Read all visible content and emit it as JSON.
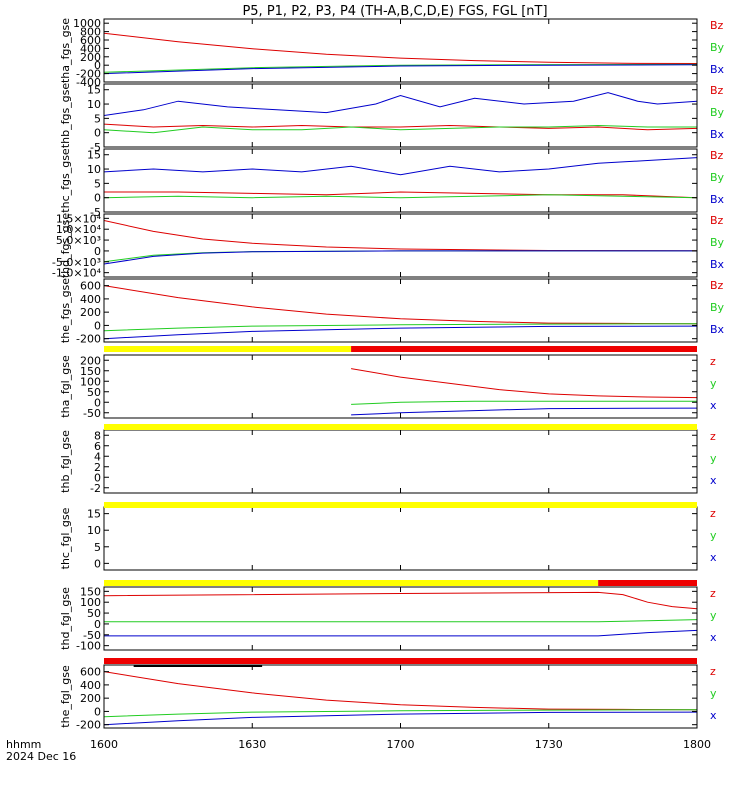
{
  "title": "P5, P1, P2, P3, P4 (TH-A,B,C,D,E) FGS, FGL [nT]",
  "footer": {
    "line1": "hhmm",
    "line2": "2024 Dec 16"
  },
  "colors": {
    "x": "#0000cc",
    "y": "#22cc22",
    "z": "#dd0000",
    "yellow": "#ffff00",
    "red": "#ee0000",
    "black": "#000000"
  },
  "chart_data": {
    "type": "line",
    "x_range": [
      "16:00",
      "18:00"
    ],
    "x_ticks": [
      {
        "t": "16:00",
        "label": "1600"
      },
      {
        "t": "16:30",
        "label": "1630"
      },
      {
        "t": "17:00",
        "label": "1700"
      },
      {
        "t": "17:30",
        "label": "1730"
      },
      {
        "t": "18:00",
        "label": "1800"
      }
    ],
    "panels": [
      {
        "ylabel": "tha_fgs_gse",
        "yticks": [
          {
            "v": 1000,
            "label": "1000"
          },
          {
            "v": 800,
            "label": "800"
          },
          {
            "v": 600,
            "label": "600"
          },
          {
            "v": 400,
            "label": "400"
          },
          {
            "v": 200,
            "label": "200"
          },
          {
            "v": 0,
            "label": "0"
          },
          {
            "v": -200,
            "label": "-200"
          },
          {
            "v": -400,
            "label": "-400"
          }
        ],
        "ylim": [
          -400,
          1100
        ],
        "legend": [
          "Bz",
          "By",
          "Bx"
        ],
        "series": [
          {
            "comp": "z",
            "t": [
              "16:00",
              "16:15",
              "16:30",
              "16:45",
              "17:00",
              "17:15",
              "17:30",
              "17:45",
              "18:00"
            ],
            "v": [
              760,
              560,
              390,
              260,
              170,
              110,
              70,
              45,
              40
            ]
          },
          {
            "comp": "y",
            "t": [
              "16:00",
              "16:30",
              "17:00",
              "17:30",
              "18:00"
            ],
            "v": [
              -170,
              -60,
              0,
              15,
              20
            ]
          },
          {
            "comp": "x",
            "t": [
              "16:00",
              "16:30",
              "17:00",
              "17:30",
              "18:00"
            ],
            "v": [
              -200,
              -80,
              -20,
              0,
              10
            ]
          }
        ]
      },
      {
        "ylabel": "thb_fgs_gse",
        "yticks": [
          {
            "v": 15,
            "label": "15"
          },
          {
            "v": 10,
            "label": "10"
          },
          {
            "v": 5,
            "label": "5"
          },
          {
            "v": 0,
            "label": "0"
          },
          {
            "v": -5,
            "label": "-5"
          }
        ],
        "ylim": [
          -5,
          17
        ],
        "legend": [
          "Bz",
          "By",
          "Bx"
        ],
        "series": [
          {
            "comp": "x",
            "t": [
              "16:00",
              "16:08",
              "16:15",
              "16:25",
              "16:35",
              "16:45",
              "16:55",
              "17:00",
              "17:08",
              "17:15",
              "17:25",
              "17:35",
              "17:42",
              "17:48",
              "17:52",
              "18:00"
            ],
            "v": [
              6,
              8,
              11,
              9,
              8,
              7,
              10,
              13,
              9,
              12,
              10,
              11,
              14,
              11,
              10,
              11
            ]
          },
          {
            "comp": "z",
            "t": [
              "16:00",
              "16:10",
              "16:20",
              "16:30",
              "16:40",
              "16:50",
              "17:00",
              "17:10",
              "17:20",
              "17:30",
              "17:40",
              "17:50",
              "18:00"
            ],
            "v": [
              3,
              2,
              2.5,
              2,
              2.5,
              2,
              2,
              2.5,
              2,
              1.5,
              2,
              1,
              1.5
            ]
          },
          {
            "comp": "y",
            "t": [
              "16:00",
              "16:10",
              "16:20",
              "16:30",
              "16:40",
              "16:50",
              "17:00",
              "17:10",
              "17:20",
              "17:30",
              "17:40",
              "17:50",
              "18:00"
            ],
            "v": [
              1,
              0,
              2,
              1,
              1,
              2,
              1,
              1.5,
              2,
              2,
              2.5,
              2,
              2
            ]
          }
        ]
      },
      {
        "ylabel": "thc_fgs_gse",
        "yticks": [
          {
            "v": 15,
            "label": "15"
          },
          {
            "v": 10,
            "label": "10"
          },
          {
            "v": 5,
            "label": "5"
          },
          {
            "v": 0,
            "label": "0"
          },
          {
            "v": -5,
            "label": "-5"
          }
        ],
        "ylim": [
          -5,
          17
        ],
        "legend": [
          "Bz",
          "By",
          "Bx"
        ],
        "series": [
          {
            "comp": "x",
            "t": [
              "16:00",
              "16:10",
              "16:20",
              "16:30",
              "16:40",
              "16:50",
              "17:00",
              "17:10",
              "17:20",
              "17:30",
              "17:40",
              "17:50",
              "18:00"
            ],
            "v": [
              9,
              10,
              9,
              10,
              9,
              11,
              8,
              11,
              9,
              10,
              12,
              13,
              14
            ]
          },
          {
            "comp": "z",
            "t": [
              "16:00",
              "16:15",
              "16:30",
              "16:45",
              "17:00",
              "17:15",
              "17:30",
              "17:45",
              "18:00"
            ],
            "v": [
              2,
              2,
              1.5,
              1,
              2,
              1.5,
              1,
              1,
              0
            ]
          },
          {
            "comp": "y",
            "t": [
              "16:00",
              "16:15",
              "16:30",
              "16:45",
              "17:00",
              "17:15",
              "17:30",
              "17:45",
              "18:00"
            ],
            "v": [
              0,
              0.5,
              0,
              0.5,
              0,
              0.5,
              1,
              0.5,
              0
            ]
          }
        ]
      },
      {
        "ylabel": "thd_fgs_gse",
        "yticks": [
          {
            "v": 15000,
            "label": "1.5×10⁴"
          },
          {
            "v": 10000,
            "label": "1.0×10⁴"
          },
          {
            "v": 5000,
            "label": "5.0×10³"
          },
          {
            "v": 0,
            "label": "0"
          },
          {
            "v": -5000,
            "label": "-5.0×10³"
          },
          {
            "v": -10000,
            "label": "-1.0×10⁴"
          }
        ],
        "ylim": [
          -12000,
          17000
        ],
        "legend": [
          "Bz",
          "By",
          "Bx"
        ],
        "series": [
          {
            "comp": "z",
            "t": [
              "16:00",
              "16:10",
              "16:20",
              "16:30",
              "16:45",
              "17:00",
              "17:15",
              "17:30",
              "18:00"
            ],
            "v": [
              14000,
              9000,
              5500,
              3500,
              1800,
              900,
              500,
              200,
              100
            ]
          },
          {
            "comp": "y",
            "t": [
              "16:00",
              "16:10",
              "16:20",
              "16:30",
              "17:00",
              "18:00"
            ],
            "v": [
              -5000,
              -2000,
              -800,
              -300,
              0,
              0
            ]
          },
          {
            "comp": "x",
            "t": [
              "16:00",
              "16:10",
              "16:20",
              "16:30",
              "17:00",
              "18:00"
            ],
            "v": [
              -6000,
              -2500,
              -1000,
              -400,
              0,
              0
            ]
          }
        ]
      },
      {
        "ylabel": "the_fgs_gse",
        "yticks": [
          {
            "v": 600,
            "label": "600"
          },
          {
            "v": 400,
            "label": "400"
          },
          {
            "v": 200,
            "label": "200"
          },
          {
            "v": 0,
            "label": "0"
          },
          {
            "v": -200,
            "label": "-200"
          }
        ],
        "ylim": [
          -250,
          700
        ],
        "legend": [
          "Bz",
          "By",
          "Bx"
        ],
        "series": [
          {
            "comp": "z",
            "t": [
              "16:00",
              "16:15",
              "16:30",
              "16:45",
              "17:00",
              "17:15",
              "17:30",
              "17:45",
              "18:00"
            ],
            "v": [
              600,
              420,
              280,
              170,
              100,
              60,
              35,
              30,
              25
            ]
          },
          {
            "comp": "y",
            "t": [
              "16:00",
              "16:15",
              "16:30",
              "17:00",
              "17:30",
              "18:00"
            ],
            "v": [
              -80,
              -40,
              -10,
              10,
              20,
              25
            ]
          },
          {
            "comp": "x",
            "t": [
              "16:00",
              "16:15",
              "16:30",
              "17:00",
              "17:30",
              "18:00"
            ],
            "v": [
              -200,
              -140,
              -90,
              -40,
              -15,
              -10
            ]
          }
        ]
      },
      {
        "ylabel": "tha_fgl_gse",
        "yticks": [
          {
            "v": 200,
            "label": "200"
          },
          {
            "v": 150,
            "label": "150"
          },
          {
            "v": 100,
            "label": "100"
          },
          {
            "v": 50,
            "label": "50"
          },
          {
            "v": 0,
            "label": "0"
          },
          {
            "v": -50,
            "label": "-50"
          }
        ],
        "ylim": [
          -75,
          225
        ],
        "legend": [
          "z",
          "y",
          "x"
        ],
        "series": [
          {
            "comp": "z",
            "t": [
              "16:50",
              "17:00",
              "17:10",
              "17:20",
              "17:30",
              "17:40",
              "17:50",
              "18:00"
            ],
            "v": [
              160,
              120,
              90,
              60,
              40,
              30,
              25,
              22
            ]
          },
          {
            "comp": "y",
            "t": [
              "16:50",
              "17:00",
              "17:15",
              "17:30",
              "18:00"
            ],
            "v": [
              -10,
              0,
              5,
              5,
              5
            ]
          },
          {
            "comp": "x",
            "t": [
              "16:50",
              "17:00",
              "17:15",
              "17:30",
              "18:00"
            ],
            "v": [
              -60,
              -50,
              -40,
              -30,
              -28
            ]
          }
        ]
      },
      {
        "ylabel": "thb_fgl_gse",
        "yticks": [
          {
            "v": 8,
            "label": "8"
          },
          {
            "v": 6,
            "label": "6"
          },
          {
            "v": 4,
            "label": "4"
          },
          {
            "v": 2,
            "label": "2"
          },
          {
            "v": 0,
            "label": "0"
          },
          {
            "v": -2,
            "label": "-2"
          }
        ],
        "ylim": [
          -3,
          9
        ],
        "legend": [
          "z",
          "y",
          "x"
        ],
        "series": []
      },
      {
        "ylabel": "thc_fgl_gse",
        "yticks": [
          {
            "v": 15,
            "label": "15"
          },
          {
            "v": 10,
            "label": "10"
          },
          {
            "v": 5,
            "label": "5"
          },
          {
            "v": 0,
            "label": "0"
          }
        ],
        "ylim": [
          -2,
          17
        ],
        "legend": [
          "z",
          "y",
          "x"
        ],
        "series": []
      },
      {
        "ylabel": "thd_fgl_gse",
        "yticks": [
          {
            "v": 150,
            "label": "150"
          },
          {
            "v": 100,
            "label": "100"
          },
          {
            "v": 50,
            "label": "50"
          },
          {
            "v": 0,
            "label": "0"
          },
          {
            "v": -50,
            "label": "-50"
          },
          {
            "v": -100,
            "label": "-100"
          }
        ],
        "ylim": [
          -120,
          170
        ],
        "legend": [
          "z",
          "y",
          "x"
        ],
        "series": [
          {
            "comp": "z",
            "t": [
              "16:00",
              "17:00",
              "17:40",
              "17:45",
              "17:50",
              "17:55",
              "18:00"
            ],
            "v": [
              130,
              140,
              145,
              135,
              100,
              80,
              70
            ]
          },
          {
            "comp": "y",
            "t": [
              "16:00",
              "17:00",
              "17:40",
              "17:50",
              "18:00"
            ],
            "v": [
              10,
              10,
              10,
              15,
              20
            ]
          },
          {
            "comp": "x",
            "t": [
              "16:00",
              "17:00",
              "17:40",
              "17:50",
              "18:00"
            ],
            "v": [
              -55,
              -55,
              -55,
              -40,
              -30
            ]
          }
        ]
      },
      {
        "ylabel": "the_fgl_gse",
        "yticks": [
          {
            "v": 600,
            "label": "600"
          },
          {
            "v": 400,
            "label": "400"
          },
          {
            "v": 200,
            "label": "200"
          },
          {
            "v": 0,
            "label": "0"
          },
          {
            "v": -200,
            "label": "-200"
          }
        ],
        "ylim": [
          -250,
          700
        ],
        "legend": [
          "z",
          "y",
          "x"
        ],
        "series": [
          {
            "comp": "z",
            "t": [
              "16:00",
              "16:15",
              "16:30",
              "16:45",
              "17:00",
              "17:15",
              "17:30",
              "17:45",
              "18:00"
            ],
            "v": [
              600,
              420,
              280,
              170,
              100,
              60,
              35,
              30,
              25
            ]
          },
          {
            "comp": "y",
            "t": [
              "16:00",
              "16:15",
              "16:30",
              "17:00",
              "17:30",
              "18:00"
            ],
            "v": [
              -80,
              -40,
              -10,
              10,
              20,
              25
            ]
          },
          {
            "comp": "x",
            "t": [
              "16:00",
              "16:15",
              "16:30",
              "17:00",
              "17:30",
              "18:00"
            ],
            "v": [
              -200,
              -140,
              -90,
              -40,
              -15,
              -10
            ]
          }
        ]
      }
    ],
    "mode_bars": [
      {
        "after_panel": 4,
        "segments": [
          {
            "from": "16:00",
            "to": "16:50",
            "color": "yellow"
          },
          {
            "from": "16:50",
            "to": "18:00",
            "color": "red"
          }
        ]
      },
      {
        "after_panel": 5,
        "segments": [
          {
            "from": "16:00",
            "to": "18:00",
            "color": "yellow"
          }
        ]
      },
      {
        "after_panel": 6,
        "segments": [
          {
            "from": "16:00",
            "to": "18:00",
            "color": "yellow"
          }
        ]
      },
      {
        "after_panel": 7,
        "segments": [
          {
            "from": "16:00",
            "to": "17:40",
            "color": "yellow"
          },
          {
            "from": "17:40",
            "to": "18:00",
            "color": "red"
          }
        ]
      },
      {
        "after_panel": 8,
        "segments": [
          {
            "from": "16:00",
            "to": "18:00",
            "color": "red"
          }
        ],
        "extra": [
          {
            "from": "16:06",
            "to": "16:32",
            "color": "black"
          }
        ]
      }
    ]
  }
}
